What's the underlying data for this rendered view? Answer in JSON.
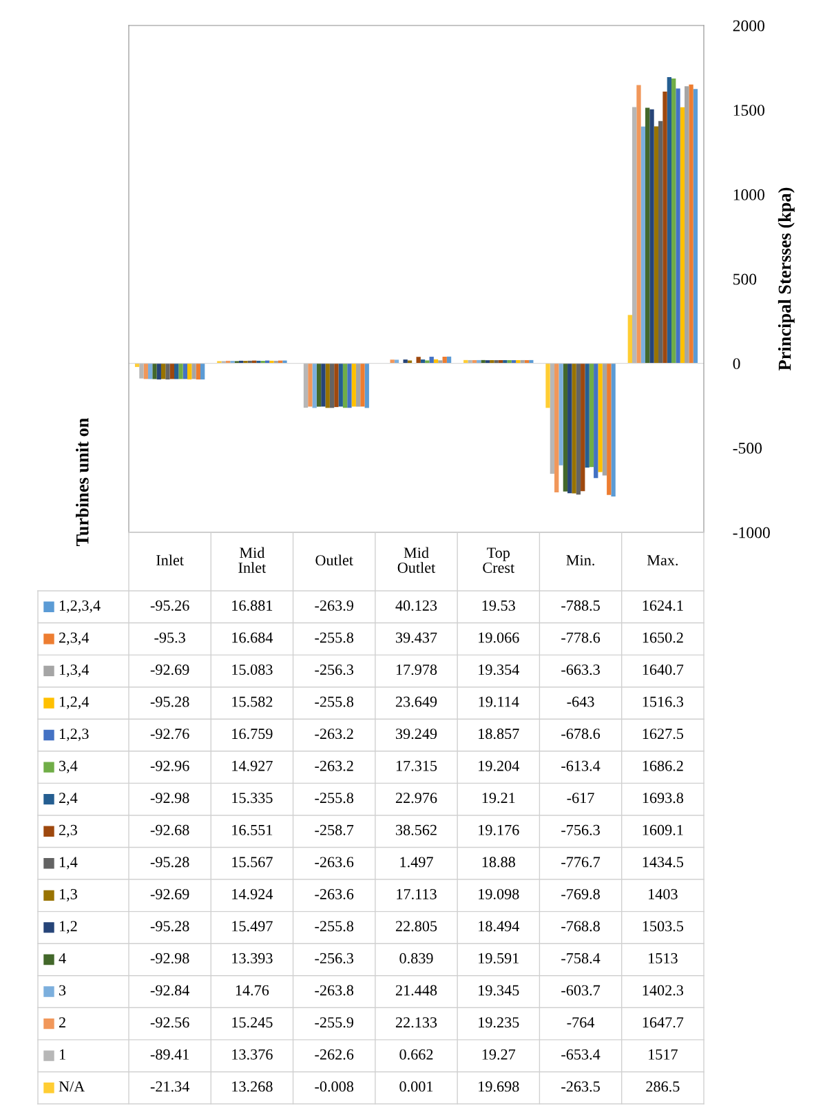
{
  "chart_data": {
    "type": "bar",
    "ylabel": "Principal Stersses (kpa)",
    "legend_title": "Turbines unit on",
    "legend": "bottom left",
    "ref_lines": [
      {
        "axis": "y",
        "value": 0,
        "color": "#d9d9d9"
      }
    ],
    "categories": [
      "Inlet",
      "Mid Inlet",
      "Outlet",
      "Mid Outlet",
      "Top Crest",
      "Min.",
      "Max."
    ],
    "ylim": [
      -1000,
      2000
    ],
    "yticks": [
      -1000,
      -500,
      0,
      500,
      1000,
      1500,
      2000
    ],
    "grid": false,
    "data_labels": true,
    "series": [
      {
        "name": "1,2,3,4",
        "color": "#5b9bd5",
        "values": [
          -95.26,
          16.881,
          -263.9,
          40.123,
          19.53,
          -788.5,
          1624.1
        ]
      },
      {
        "name": "2,3,4",
        "color": "#ed7d31",
        "values": [
          -95.3,
          16.684,
          -255.8,
          39.437,
          19.066,
          -778.6,
          1650.2
        ]
      },
      {
        "name": "1,3,4",
        "color": "#a5a5a5",
        "values": [
          -92.69,
          15.083,
          -256.3,
          17.978,
          19.354,
          -663.3,
          1640.7
        ]
      },
      {
        "name": "1,2,4",
        "color": "#ffc000",
        "values": [
          -95.28,
          15.582,
          -255.8,
          23.649,
          19.114,
          -643,
          1516.3
        ]
      },
      {
        "name": "1,2,3",
        "color": "#4472c4",
        "values": [
          -92.76,
          16.759,
          -263.2,
          39.249,
          18.857,
          -678.6,
          1627.5
        ]
      },
      {
        "name": "3,4",
        "color": "#70ad47",
        "values": [
          -92.96,
          14.927,
          -263.2,
          17.315,
          19.204,
          -613.4,
          1686.2
        ]
      },
      {
        "name": "2,4",
        "color": "#255e91",
        "values": [
          -92.98,
          15.335,
          -255.8,
          22.976,
          19.21,
          -617,
          1693.8
        ]
      },
      {
        "name": "2,3",
        "color": "#9e480e",
        "values": [
          -92.68,
          16.551,
          -258.7,
          38.562,
          19.176,
          -756.3,
          1609.1
        ]
      },
      {
        "name": "1,4",
        "color": "#636363",
        "values": [
          -95.28,
          15.567,
          -263.6,
          1.497,
          18.88,
          -776.7,
          1434.5
        ]
      },
      {
        "name": "1,3",
        "color": "#997300",
        "values": [
          -92.69,
          14.924,
          -263.6,
          17.113,
          19.098,
          -769.8,
          1403
        ]
      },
      {
        "name": "1,2",
        "color": "#264478",
        "values": [
          -95.28,
          15.497,
          -255.8,
          22.805,
          18.494,
          -768.8,
          1503.5
        ]
      },
      {
        "name": "4",
        "color": "#43682b",
        "values": [
          -92.98,
          13.393,
          -256.3,
          0.839,
          19.591,
          -758.4,
          1513
        ]
      },
      {
        "name": "3",
        "color": "#7cafdd",
        "values": [
          -92.84,
          14.76,
          -263.8,
          21.448,
          19.345,
          -603.7,
          1402.3
        ]
      },
      {
        "name": "2",
        "color": "#f1975a",
        "values": [
          -92.56,
          15.245,
          -255.9,
          22.133,
          19.235,
          -764,
          1647.7
        ]
      },
      {
        "name": "1",
        "color": "#b7b7b7",
        "values": [
          -89.41,
          13.376,
          -262.6,
          0.662,
          19.27,
          -653.4,
          1517
        ]
      },
      {
        "name": "N/A",
        "color": "#ffcd33",
        "values": [
          -21.34,
          13.268,
          -0.008,
          0.001,
          19.698,
          -263.5,
          286.5
        ]
      }
    ]
  }
}
